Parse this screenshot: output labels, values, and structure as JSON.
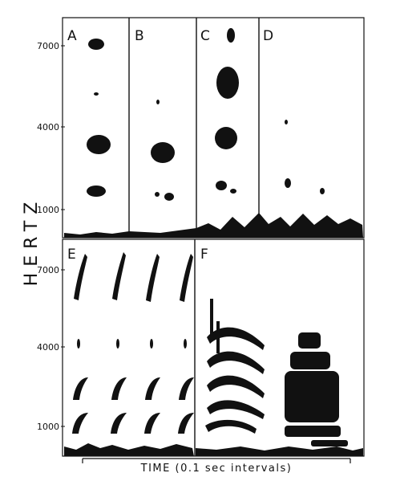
{
  "chart_data": {
    "type": "spectrogram",
    "ylabel": "HERTZ",
    "xlabel": "TIME (0.1 sec intervals)",
    "y_ticks": [
      7000,
      4000,
      1000
    ],
    "grid": false,
    "legend": "none",
    "panels": [
      {
        "id": "A",
        "label": "A",
        "ylim": [
          0,
          8000
        ]
      },
      {
        "id": "B",
        "label": "B",
        "ylim": [
          0,
          8000
        ]
      },
      {
        "id": "C",
        "label": "C",
        "ylim": [
          0,
          8000
        ]
      },
      {
        "id": "D",
        "label": "D",
        "ylim": [
          0,
          8000
        ]
      },
      {
        "id": "E",
        "label": "E",
        "ylim": [
          0,
          8000
        ]
      },
      {
        "id": "F",
        "label": "F",
        "ylim": [
          0,
          8000
        ]
      }
    ]
  },
  "colors": {
    "ink": "#111111",
    "paper": "#ffffff"
  }
}
